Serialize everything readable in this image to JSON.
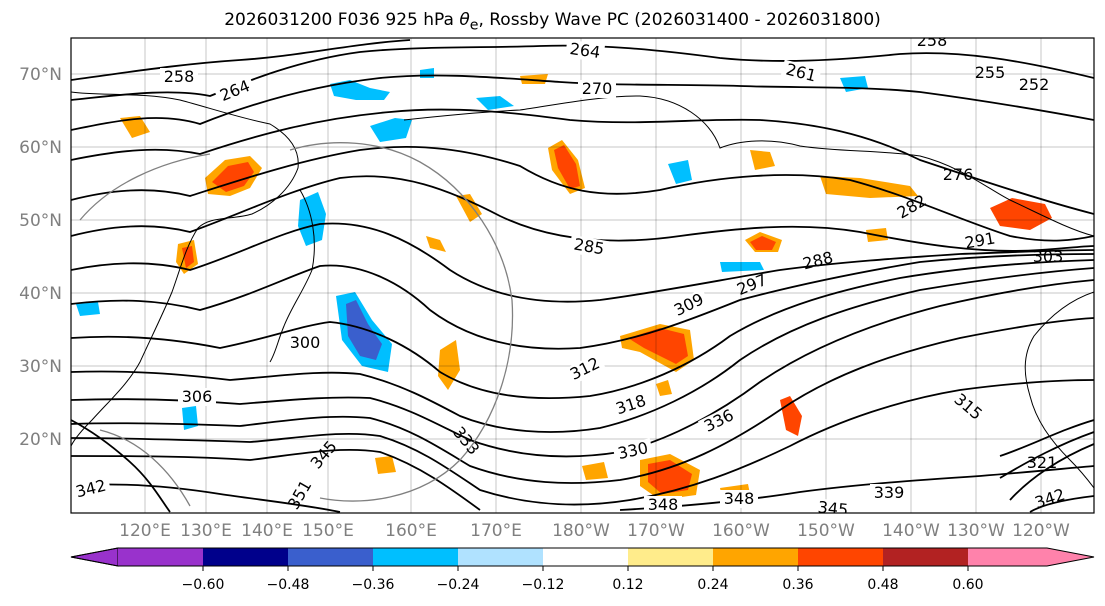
{
  "title": {
    "prefix": "2026031200 F036 925 hPa ",
    "theta": "θ",
    "sub": "e",
    "suffix": ", Rossby Wave PC (2026031400 - 2026031800)"
  },
  "lat_labels": [
    "70°N",
    "60°N",
    "50°N",
    "40°N",
    "30°N",
    "20°N"
  ],
  "lon_labels": [
    "120°E",
    "130°E",
    "140°E",
    "150°E",
    "160°E",
    "170°E",
    "180°W",
    "170°W",
    "160°W",
    "150°W",
    "140°W",
    "130°W",
    "120°W"
  ],
  "colorbar": {
    "colors": [
      "#9932cc",
      "#00008b",
      "#3a5fcd",
      "#00bfff",
      "#b0e2ff",
      "#ffffff",
      "#ffec8b",
      "#ffa500",
      "#ff4500",
      "#b22222",
      "#ff82ab"
    ],
    "ticks": [
      "−0.60",
      "−0.48",
      "−0.36",
      "−0.24",
      "−0.12",
      "0.12",
      "0.24",
      "0.36",
      "0.48",
      "0.60"
    ]
  },
  "contour_labels": [
    "258",
    "264",
    "264",
    "258",
    "261",
    "255",
    "252",
    "270",
    "276",
    "282",
    "285",
    "288",
    "291",
    "297",
    "300",
    "303",
    "306",
    "309",
    "312",
    "315",
    "318",
    "321",
    "330",
    "333",
    "336",
    "339",
    "342",
    "342",
    "345",
    "345",
    "348",
    "348",
    "351"
  ]
}
